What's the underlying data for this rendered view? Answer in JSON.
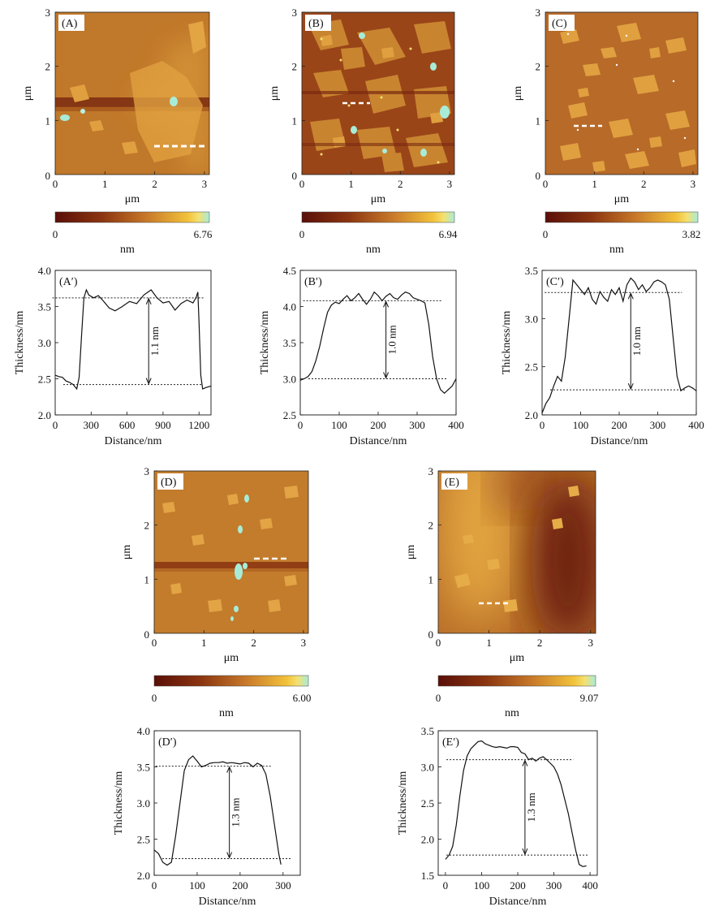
{
  "afm_panels": [
    {
      "label": "(A)",
      "xlabel": "μm",
      "ylabel": "μm",
      "xticks": [
        "0",
        "1",
        "2",
        "3"
      ],
      "yticks": [
        "1",
        "2",
        "3"
      ],
      "scale_unit": "nm",
      "scale_min": "0",
      "scale_max": "6.76",
      "height_range_nm": [
        0,
        6.76
      ]
    },
    {
      "label": "(B)",
      "xlabel": "μm",
      "ylabel": "μm",
      "xticks": [
        "0",
        "1",
        "2",
        "3"
      ],
      "yticks": [
        "1",
        "2",
        "3"
      ],
      "scale_unit": "nm",
      "scale_min": "0",
      "scale_max": "6.94",
      "height_range_nm": [
        0,
        6.94
      ]
    },
    {
      "label": "(C)",
      "xlabel": "μm",
      "ylabel": "μm",
      "xticks": [
        "0",
        "1",
        "2",
        "3"
      ],
      "yticks": [
        "1",
        "2",
        "3"
      ],
      "scale_unit": "nm",
      "scale_min": "0",
      "scale_max": "3.82",
      "height_range_nm": [
        0,
        3.82
      ]
    },
    {
      "label": "(D)",
      "xlabel": "μm",
      "ylabel": "μm",
      "xticks": [
        "0",
        "1",
        "2",
        "3"
      ],
      "yticks": [
        "1",
        "2",
        "3"
      ],
      "scale_unit": "nm",
      "scale_min": "0",
      "scale_max": "6.00",
      "height_range_nm": [
        0,
        6.0
      ]
    },
    {
      "label": "(E)",
      "xlabel": "μm",
      "ylabel": "μm",
      "xticks": [
        "0",
        "1",
        "2",
        "3"
      ],
      "yticks": [
        "1",
        "2",
        "3"
      ],
      "scale_unit": "nm",
      "scale_min": "0",
      "scale_max": "9.07",
      "height_range_nm": [
        0,
        9.07
      ]
    }
  ],
  "chart_data": [
    {
      "type": "line",
      "label": "(A′)",
      "xlabel": "Distance/nm",
      "ylabel": "Thickness/nm",
      "xlim": [
        0,
        1300
      ],
      "ylim": [
        2.0,
        4.0
      ],
      "xticks": [
        0,
        300,
        600,
        900,
        1200
      ],
      "yticks": [
        2.0,
        2.5,
        3.0,
        3.5,
        4.0
      ],
      "x": [
        0,
        30,
        60,
        90,
        120,
        150,
        180,
        200,
        220,
        240,
        260,
        280,
        320,
        360,
        400,
        450,
        500,
        560,
        620,
        680,
        740,
        800,
        850,
        900,
        950,
        1000,
        1050,
        1100,
        1150,
        1175,
        1190,
        1200,
        1215,
        1230,
        1260,
        1300
      ],
      "y": [
        2.55,
        2.53,
        2.52,
        2.47,
        2.45,
        2.42,
        2.36,
        2.52,
        3.1,
        3.62,
        3.73,
        3.66,
        3.62,
        3.65,
        3.58,
        3.48,
        3.44,
        3.5,
        3.57,
        3.54,
        3.66,
        3.73,
        3.62,
        3.55,
        3.57,
        3.45,
        3.54,
        3.59,
        3.55,
        3.62,
        3.7,
        3.3,
        2.55,
        2.36,
        2.38,
        2.4
      ],
      "ref_lines": [
        3.62,
        2.42
      ],
      "arrow_x": 780,
      "annotation": "1.1 nm"
    },
    {
      "type": "line",
      "label": "(B′)",
      "xlabel": "Distance/nm",
      "ylabel": "Thickness/nm",
      "xlim": [
        0,
        400
      ],
      "ylim": [
        2.5,
        4.5
      ],
      "xticks": [
        0,
        100,
        200,
        300,
        400
      ],
      "yticks": [
        2.5,
        3.0,
        3.5,
        4.0,
        4.5
      ],
      "x": [
        0,
        10,
        20,
        30,
        40,
        50,
        60,
        70,
        80,
        90,
        100,
        110,
        120,
        130,
        140,
        150,
        160,
        170,
        180,
        190,
        200,
        210,
        220,
        230,
        240,
        250,
        260,
        270,
        280,
        290,
        300,
        310,
        320,
        330,
        340,
        350,
        360,
        370,
        380,
        390,
        400
      ],
      "y": [
        2.98,
        3.0,
        3.03,
        3.1,
        3.25,
        3.45,
        3.7,
        3.92,
        4.02,
        4.06,
        4.04,
        4.1,
        4.15,
        4.08,
        4.12,
        4.18,
        4.1,
        4.03,
        4.1,
        4.2,
        4.15,
        4.08,
        4.14,
        4.18,
        4.12,
        4.1,
        4.16,
        4.2,
        4.18,
        4.12,
        4.1,
        4.08,
        4.05,
        3.75,
        3.3,
        3.0,
        2.85,
        2.8,
        2.85,
        2.9,
        3.0
      ],
      "ref_lines": [
        4.08,
        3.0
      ],
      "arrow_x": 220,
      "annotation": "1.0 nm"
    },
    {
      "type": "line",
      "label": "(C′)",
      "xlabel": "Distance/nm",
      "ylabel": "Thickness/nm",
      "xlim": [
        0,
        400
      ],
      "ylim": [
        2.0,
        3.5
      ],
      "xticks": [
        0,
        100,
        200,
        300,
        400
      ],
      "yticks": [
        2.0,
        2.5,
        3.0,
        3.5
      ],
      "x": [
        0,
        10,
        20,
        30,
        40,
        50,
        60,
        70,
        80,
        90,
        100,
        110,
        120,
        130,
        140,
        150,
        160,
        170,
        180,
        190,
        200,
        210,
        220,
        230,
        240,
        250,
        260,
        270,
        280,
        290,
        300,
        310,
        320,
        330,
        340,
        350,
        360,
        370,
        380,
        390,
        400
      ],
      "y": [
        2.02,
        2.12,
        2.18,
        2.3,
        2.4,
        2.35,
        2.6,
        3.0,
        3.4,
        3.35,
        3.3,
        3.25,
        3.32,
        3.2,
        3.15,
        3.28,
        3.22,
        3.18,
        3.3,
        3.25,
        3.32,
        3.18,
        3.35,
        3.42,
        3.38,
        3.3,
        3.35,
        3.28,
        3.32,
        3.38,
        3.4,
        3.38,
        3.35,
        3.2,
        2.8,
        2.4,
        2.25,
        2.28,
        2.3,
        2.28,
        2.25
      ],
      "ref_lines": [
        3.27,
        2.26
      ],
      "arrow_x": 230,
      "annotation": "1.0 nm"
    },
    {
      "type": "line",
      "label": "(D′)",
      "xlabel": "Distance/nm",
      "ylabel": "Thickness/nm",
      "xlim": [
        0,
        340
      ],
      "ylim": [
        2.0,
        4.0
      ],
      "xticks": [
        0,
        100,
        200,
        300
      ],
      "yticks": [
        2.0,
        2.5,
        3.0,
        3.5,
        4.0
      ],
      "x": [
        0,
        10,
        20,
        30,
        40,
        50,
        60,
        70,
        80,
        90,
        100,
        110,
        120,
        130,
        140,
        150,
        160,
        170,
        180,
        190,
        200,
        210,
        220,
        230,
        240,
        250,
        260,
        270,
        280,
        290,
        295
      ],
      "y": [
        2.35,
        2.3,
        2.18,
        2.14,
        2.18,
        2.55,
        3.0,
        3.45,
        3.6,
        3.65,
        3.58,
        3.5,
        3.52,
        3.55,
        3.56,
        3.56,
        3.57,
        3.55,
        3.56,
        3.55,
        3.54,
        3.56,
        3.55,
        3.5,
        3.55,
        3.52,
        3.4,
        3.1,
        2.7,
        2.3,
        2.15
      ],
      "ref_lines": [
        3.51,
        2.23
      ],
      "arrow_x": 175,
      "annotation": "1.3 nm"
    },
    {
      "type": "line",
      "label": "(E′)",
      "xlabel": "Distance/nm",
      "ylabel": "Thickness/nm",
      "xlim": [
        -20,
        420
      ],
      "ylim": [
        1.5,
        3.5
      ],
      "xticks": [
        0,
        100,
        200,
        300,
        400
      ],
      "yticks": [
        1.5,
        2.0,
        2.5,
        3.0,
        3.5
      ],
      "x": [
        0,
        10,
        20,
        30,
        40,
        50,
        60,
        70,
        80,
        90,
        100,
        110,
        120,
        130,
        140,
        150,
        160,
        170,
        180,
        190,
        200,
        210,
        220,
        230,
        240,
        250,
        260,
        270,
        280,
        290,
        300,
        310,
        320,
        330,
        340,
        350,
        360,
        370,
        380,
        390
      ],
      "y": [
        1.72,
        1.78,
        1.9,
        2.2,
        2.6,
        2.95,
        3.15,
        3.25,
        3.3,
        3.35,
        3.36,
        3.32,
        3.3,
        3.28,
        3.27,
        3.28,
        3.27,
        3.26,
        3.28,
        3.28,
        3.27,
        3.2,
        3.18,
        3.1,
        3.12,
        3.08,
        3.12,
        3.14,
        3.1,
        3.05,
        3.0,
        2.9,
        2.75,
        2.55,
        2.35,
        2.1,
        1.85,
        1.65,
        1.62,
        1.63
      ],
      "ref_lines": [
        3.1,
        1.78
      ],
      "arrow_x": 220,
      "annotation": "1.3 nm"
    }
  ]
}
